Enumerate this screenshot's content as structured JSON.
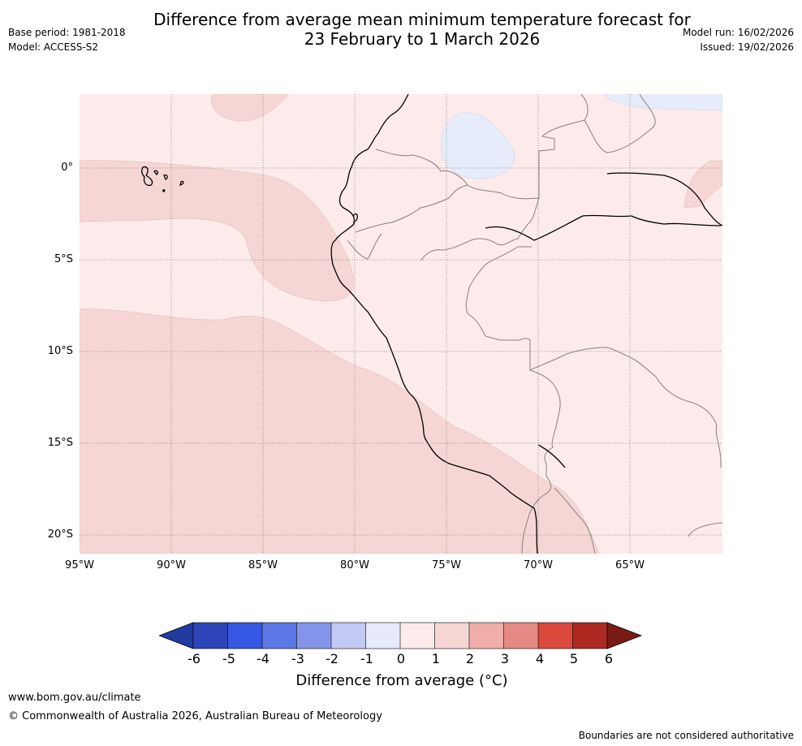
{
  "title": {
    "line1": "Difference from average mean minimum temperature forecast for",
    "line2": "23 February to 1 March 2026"
  },
  "meta": {
    "base_period": "Base period: 1981-2018",
    "model": "Model: ACCESS-S2",
    "model_run": "Model run: 16/02/2026",
    "issued": "Issued: 19/02/2026"
  },
  "map": {
    "latitude_labels": [
      "0°",
      "5°S",
      "10°S",
      "15°S",
      "20°S"
    ],
    "longitude_labels": [
      "95°W",
      "90°W",
      "85°W",
      "80°W",
      "75°W",
      "70°W",
      "65°W"
    ],
    "extent": {
      "lon_min": -95,
      "lon_max": -60,
      "lat_min": -21,
      "lat_max": 4
    },
    "colors": {
      "anomaly_0_1": "#fcebea",
      "anomaly_1_2": "#f6d6d4",
      "anomaly_-1_0": "#e7ecfb",
      "coast": "#000000",
      "border": "#888080",
      "grid": "#777777"
    }
  },
  "colorbar": {
    "ticks": [
      "-6",
      "-5",
      "-4",
      "-3",
      "-2",
      "-1",
      "0",
      "1",
      "2",
      "3",
      "4",
      "5",
      "6"
    ],
    "colors": [
      "#233b9f",
      "#2d44b8",
      "#3557e3",
      "#5b78e6",
      "#8495e9",
      "#c2c9f3",
      "#e7eafb",
      "#fcebea",
      "#f6d6d4",
      "#efaeaa",
      "#e58a84",
      "#dc4a3f",
      "#ad2a22",
      "#7a1a14"
    ],
    "label": "Difference from average ($^\\circ$C)",
    "label_text": "Difference from average (°C)"
  },
  "footer": {
    "website": "www.bom.gov.au/climate",
    "copyright": "© Commonwealth of Australia 2026, Australian Bureau of Meteorology",
    "disclaimer": "Boundaries are not considered authoritative"
  }
}
